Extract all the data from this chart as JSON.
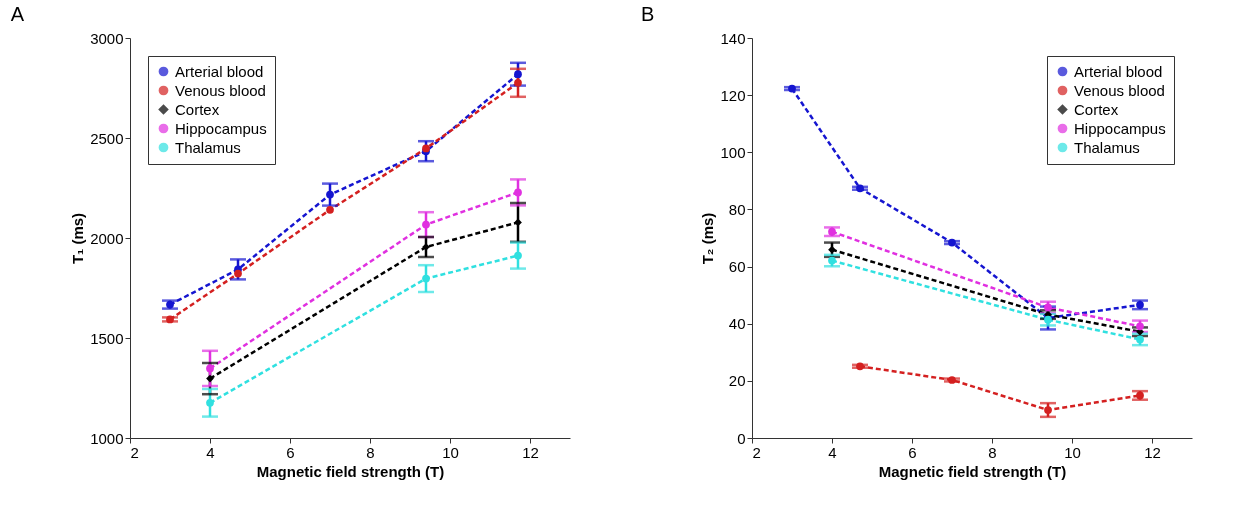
{
  "chart_data": [
    {
      "type": "line",
      "title": "A",
      "xlabel": "Magnetic field strength (T)",
      "ylabel": "T₁ (ms)",
      "xlim": [
        2,
        13
      ],
      "xticks": [
        2,
        4,
        6,
        8,
        10,
        12
      ],
      "ylim": [
        1000,
        3000
      ],
      "yticks": [
        1000,
        1500,
        2000,
        2500,
        3000
      ],
      "grid": false,
      "legend": "top left",
      "line_style": "dashed",
      "series": [
        {
          "name": "Arterial blood",
          "color": "#1515d0",
          "marker": "circle",
          "x": [
            3,
            4.7,
            7,
            9.4,
            11.7
          ],
          "values": [
            1667,
            1843,
            2217,
            2434,
            2819
          ],
          "errors": [
            20,
            50,
            55,
            50,
            57
          ]
        },
        {
          "name": "Venous blood",
          "color": "#d42020",
          "marker": "circle",
          "x": [
            3,
            4.7,
            7,
            9.4,
            11.7
          ],
          "values": [
            1593,
            1822,
            2141,
            2448,
            2776
          ],
          "errors": [
            10,
            null,
            null,
            null,
            70
          ]
        },
        {
          "name": "Cortex",
          "color": "#000000",
          "marker": "diamond",
          "x": [
            4,
            9.4,
            11.7
          ],
          "values": [
            1297,
            1955,
            2078
          ],
          "errors": [
            78,
            50,
            97
          ]
        },
        {
          "name": "Hippocampus",
          "color": "#e030e0",
          "marker": "circle",
          "x": [
            4,
            9.4,
            11.7
          ],
          "values": [
            1348,
            2067,
            2228
          ],
          "errors": [
            88,
            62,
            65
          ]
        },
        {
          "name": "Thalamus",
          "color": "#30e0e0",
          "marker": "circle",
          "x": [
            4,
            9.4,
            11.7
          ],
          "values": [
            1176,
            1797,
            1912
          ],
          "errors": [
            69,
            67,
            65
          ]
        }
      ]
    },
    {
      "type": "line",
      "title": "B",
      "xlabel": "Magnetic field strength (T)",
      "ylabel": "T₂ (ms)",
      "xlim": [
        2,
        13
      ],
      "xticks": [
        2,
        4,
        6,
        8,
        10,
        12
      ],
      "ylim": [
        0,
        140
      ],
      "yticks": [
        0,
        20,
        40,
        60,
        80,
        100,
        120,
        140
      ],
      "grid": false,
      "legend": "top right",
      "line_style": "dashed",
      "series": [
        {
          "name": "Arterial blood",
          "color": "#1515d0",
          "marker": "circle",
          "x": [
            3,
            4.7,
            7,
            9.4,
            11.7
          ],
          "values": [
            122.3,
            87.4,
            68.4,
            42,
            46.6
          ],
          "errors": [
            0.5,
            0.5,
            0.5,
            4,
            1.5
          ]
        },
        {
          "name": "Venous blood",
          "color": "#d42020",
          "marker": "circle",
          "x": [
            4.7,
            7,
            9.4,
            11.7
          ],
          "values": [
            25.1,
            20.3,
            9.8,
            14.9
          ],
          "errors": [
            0.5,
            0.5,
            2.4,
            1.5
          ]
        },
        {
          "name": "Cortex",
          "color": "#000000",
          "marker": "diamond",
          "x": [
            4,
            9.4,
            11.7
          ],
          "values": [
            65.9,
            43.2,
            37.2
          ],
          "errors": [
            2.5,
            1.5,
            1.5
          ]
        },
        {
          "name": "Hippocampus",
          "color": "#e030e0",
          "marker": "circle",
          "x": [
            4,
            9.4,
            11.7
          ],
          "values": [
            72.2,
            45.7,
            39.1
          ],
          "errors": [
            1.5,
            2,
            2
          ]
        },
        {
          "name": "Thalamus",
          "color": "#30e0e0",
          "marker": "circle",
          "x": [
            4,
            9.4,
            11.7
          ],
          "values": [
            62.1,
            41.4,
            34.5
          ],
          "errors": [
            2,
            2,
            2
          ]
        }
      ]
    }
  ]
}
